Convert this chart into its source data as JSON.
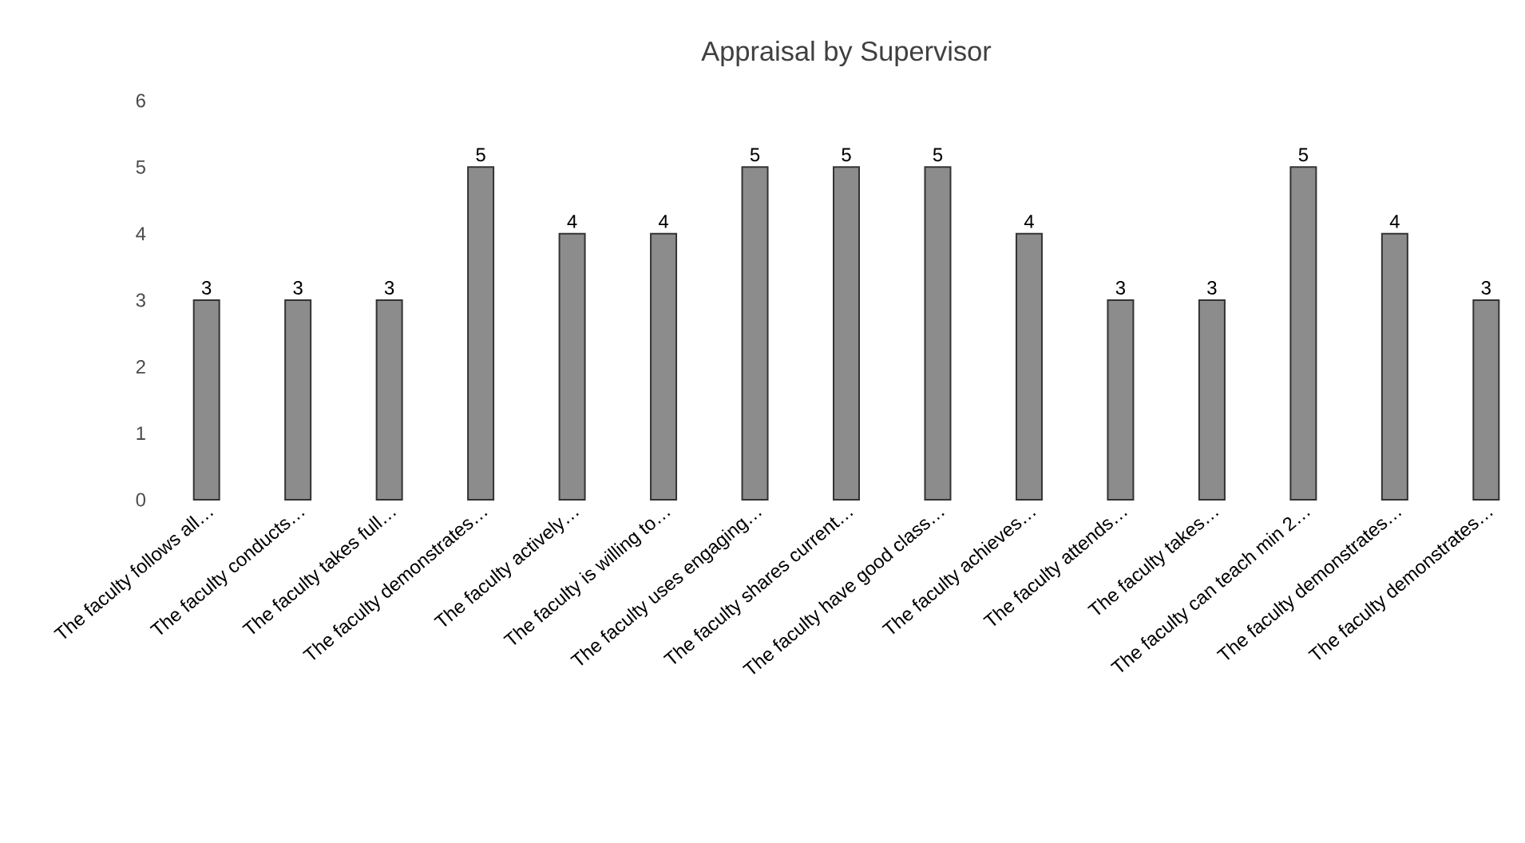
{
  "chart_data": {
    "type": "bar",
    "title": "Appraisal by Supervisor",
    "categories": [
      "The faculty follows all…",
      "The faculty conducts…",
      "The faculty takes full…",
      "The faculty demonstrates…",
      "The faculty actively…",
      "The faculty is willing to…",
      "The faculty uses engaging…",
      "The faculty shares current…",
      "The faculty have good class…",
      "The faculty achieves…",
      "The faculty attends…",
      "The faculty takes…",
      "The faculty can teach min 2…",
      "The faculty demonstrates…",
      "The faculty demonstrates…"
    ],
    "values": [
      3,
      3,
      3,
      5,
      4,
      4,
      5,
      5,
      5,
      4,
      3,
      3,
      5,
      4,
      3
    ],
    "color": "#8c8c8c",
    "ylim": [
      0,
      6
    ],
    "yticks": [
      0,
      1,
      2,
      3,
      4,
      5,
      6
    ],
    "grid": false,
    "data_labels": true
  }
}
